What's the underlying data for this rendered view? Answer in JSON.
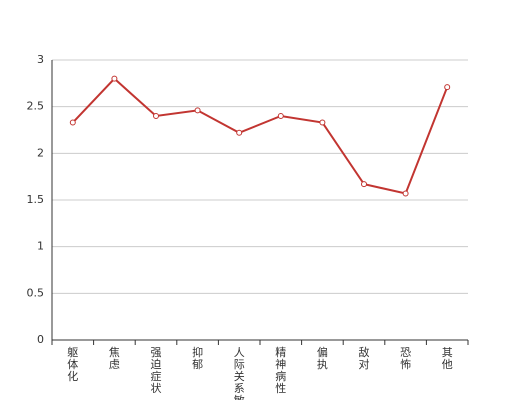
{
  "chart_data": {
    "type": "line",
    "categories": [
      "躯体化",
      "焦虑",
      "强迫症状",
      "抑郁",
      "人际关系敏感",
      "精神病性",
      "偏执",
      "敌对",
      "恐怖",
      "其他"
    ],
    "values": [
      2.33,
      2.8,
      2.4,
      2.46,
      2.22,
      2.4,
      2.33,
      1.67,
      1.57,
      2.71
    ],
    "color": "#c23531",
    "ylim": [
      0,
      3
    ],
    "yticks": [
      0,
      0.5,
      1,
      1.5,
      2,
      2.5,
      3
    ],
    "grid": true
  }
}
